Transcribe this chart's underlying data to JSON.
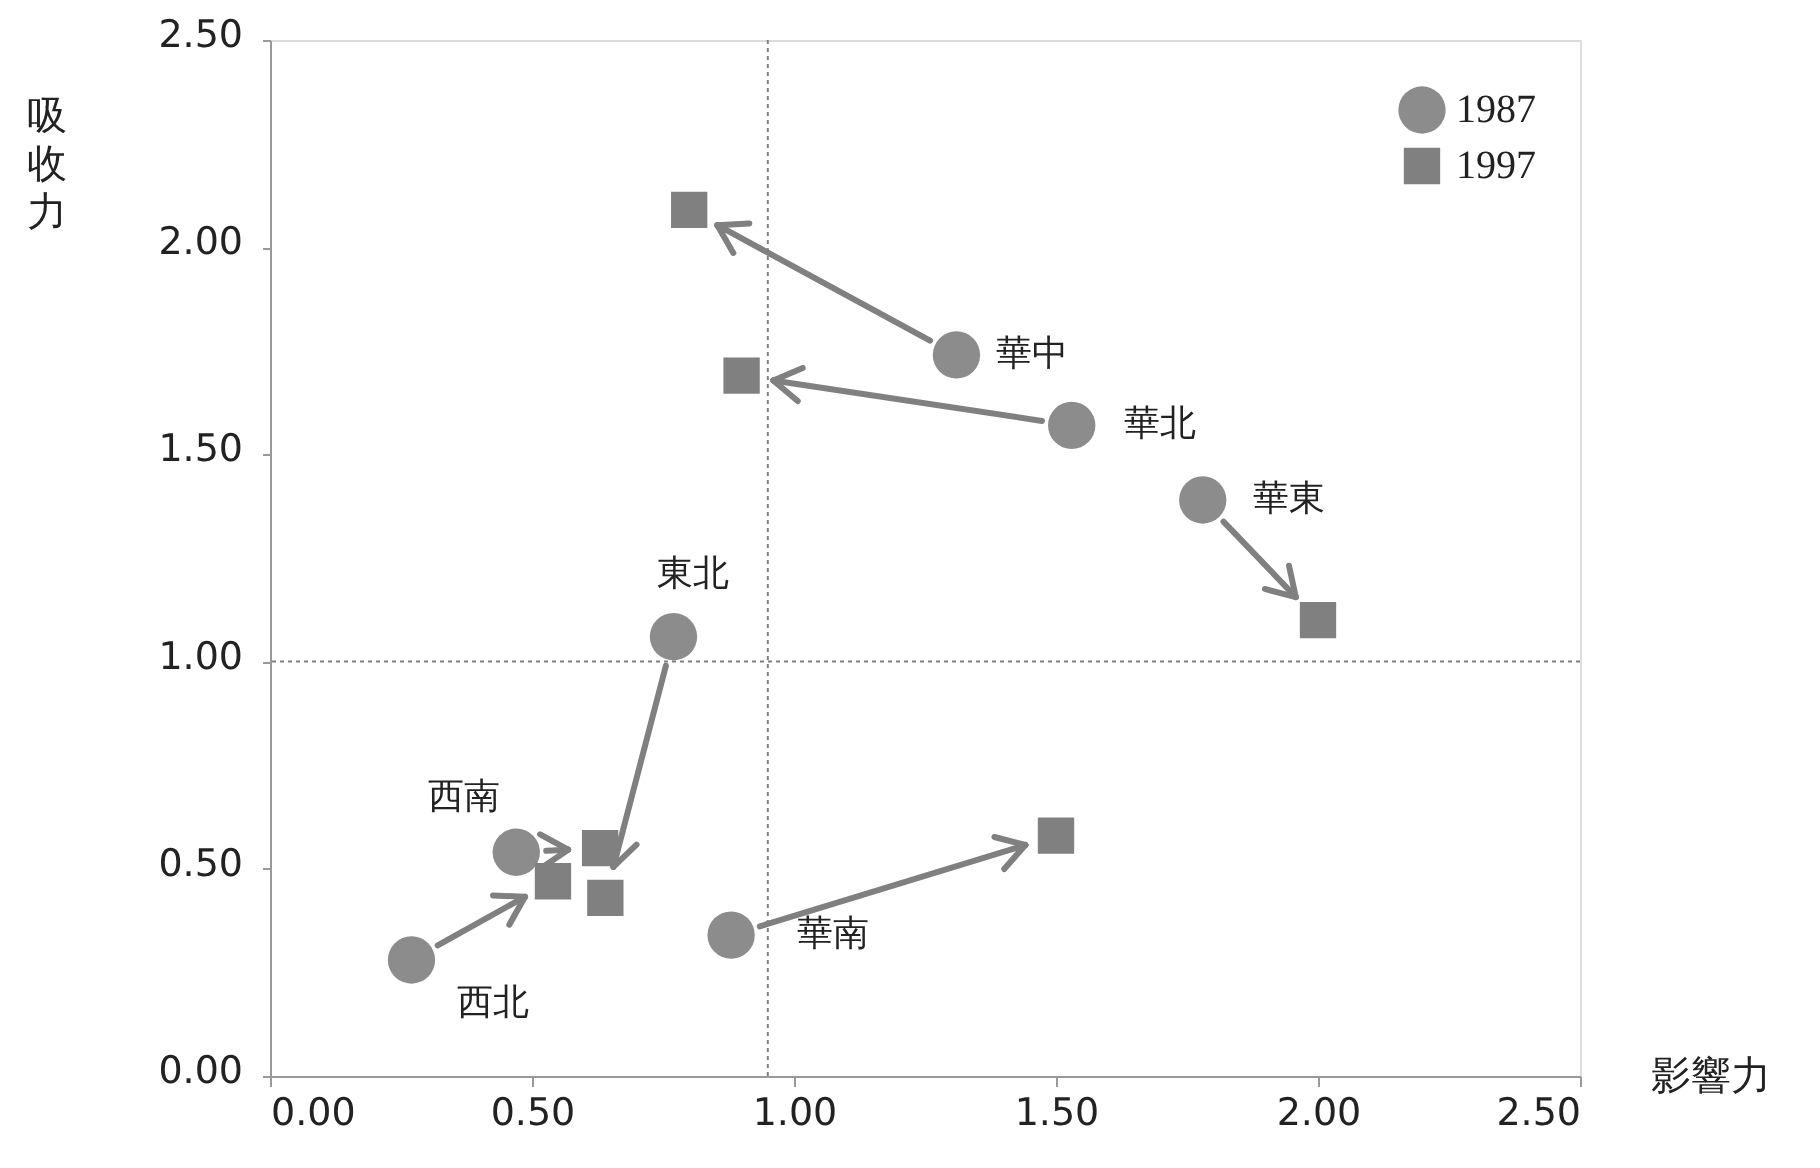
{
  "chart_data": {
    "type": "scatter",
    "xlabel": "影響力",
    "ylabel": "吸收力",
    "xlim": [
      0,
      2.5
    ],
    "ylim": [
      0,
      2.5
    ],
    "xticks": [
      {
        "value": 0,
        "label": "0.00"
      },
      {
        "value": 0.5,
        "label": "0.50"
      },
      {
        "value": 1,
        "label": "1.00"
      },
      {
        "value": 1.5,
        "label": "1.50"
      },
      {
        "value": 2,
        "label": "2.00"
      },
      {
        "value": 2.5,
        "label": "2.50"
      }
    ],
    "yticks": [
      {
        "value": 0,
        "label": "0.00"
      },
      {
        "value": 0.5,
        "label": "0.50"
      },
      {
        "value": 1,
        "label": "1.00"
      },
      {
        "value": 1.5,
        "label": "1.50"
      },
      {
        "value": 2,
        "label": "2.00"
      },
      {
        "value": 2.5,
        "label": "2.50"
      }
    ],
    "grid": false,
    "legend": "top right",
    "series": [
      {
        "name": "1987",
        "color": "#8c8c8c",
        "marker": "circle",
        "x": [
          1.31,
          1.53,
          1.78,
          0.77,
          0.47,
          0.27,
          0.88
        ],
        "values": [
          1.74,
          1.57,
          1.39,
          1.06,
          0.54,
          0.28,
          0.34
        ]
      },
      {
        "name": "1997",
        "color": "#808080",
        "marker": "square",
        "x": [
          0.8,
          0.9,
          2.0,
          0.64,
          0.63,
          0.54,
          1.5
        ],
        "values": [
          2.09,
          1.69,
          1.1,
          0.43,
          0.55,
          0.47,
          0.58
        ]
      }
    ],
    "ref_lines": [
      {
        "axis": "x",
        "value": 0.95,
        "color": "#808080",
        "line_style": "dotted"
      },
      {
        "axis": "y",
        "value": 1.0,
        "color": "#808080",
        "line_style": "dotted"
      }
    ],
    "annotations": [
      {
        "text": "華中",
        "x": 1.31,
        "y": 1.74
      },
      {
        "text": "華北",
        "x": 1.53,
        "y": 1.57
      },
      {
        "text": "華東",
        "x": 1.78,
        "y": 1.39
      },
      {
        "text": "東北",
        "x": 0.77,
        "y": 1.06
      },
      {
        "text": "西南",
        "x": 0.47,
        "y": 0.54
      },
      {
        "text": "西北",
        "x": 0.27,
        "y": 0.28
      },
      {
        "text": "華南",
        "x": 0.88,
        "y": 0.34
      }
    ]
  }
}
